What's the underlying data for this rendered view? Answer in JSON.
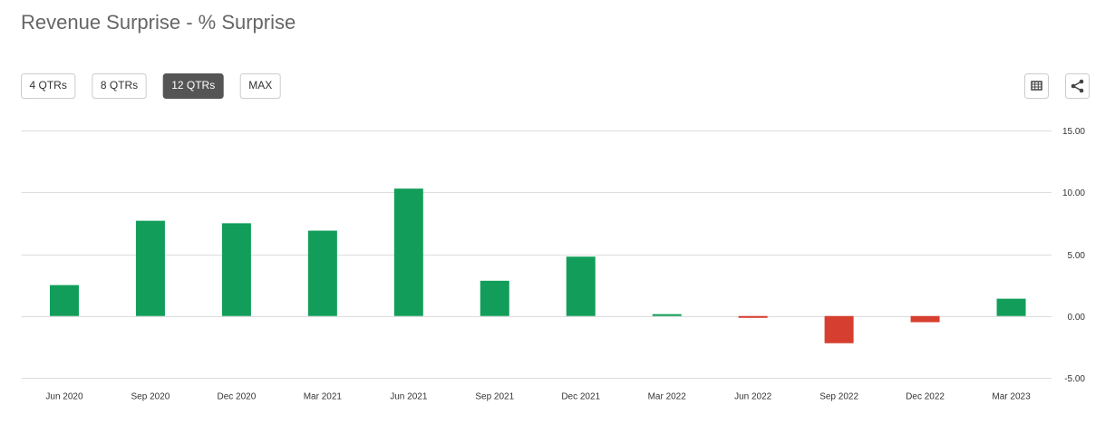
{
  "chart_data": {
    "type": "bar",
    "title": "Revenue Surprise - % Surprise",
    "range_buttons": [
      "4 QTRs",
      "8 QTRs",
      "12 QTRs",
      "MAX"
    ],
    "selected_button": 2,
    "categories": [
      "Jun 2020",
      "Sep 2020",
      "Dec 2020",
      "Mar 2021",
      "Jun 2021",
      "Sep 2021",
      "Dec 2021",
      "Mar 2022",
      "Jun 2022",
      "Sep 2022",
      "Dec 2022",
      "Mar 2023"
    ],
    "values": [
      2.5,
      7.7,
      7.5,
      6.9,
      10.3,
      2.85,
      4.8,
      0.15,
      -0.15,
      -2.2,
      -0.5,
      1.4
    ],
    "color": "#129e5a",
    "negative_color": "#d63f2f",
    "ylim": [
      -5,
      15
    ],
    "yticks": [
      {
        "value": -5,
        "label": "-5.00"
      },
      {
        "value": 0,
        "label": "0.00"
      },
      {
        "value": 5,
        "label": "5.00"
      },
      {
        "value": 10,
        "label": "10.00"
      },
      {
        "value": 15,
        "label": "15.00"
      }
    ],
    "grid": true
  }
}
